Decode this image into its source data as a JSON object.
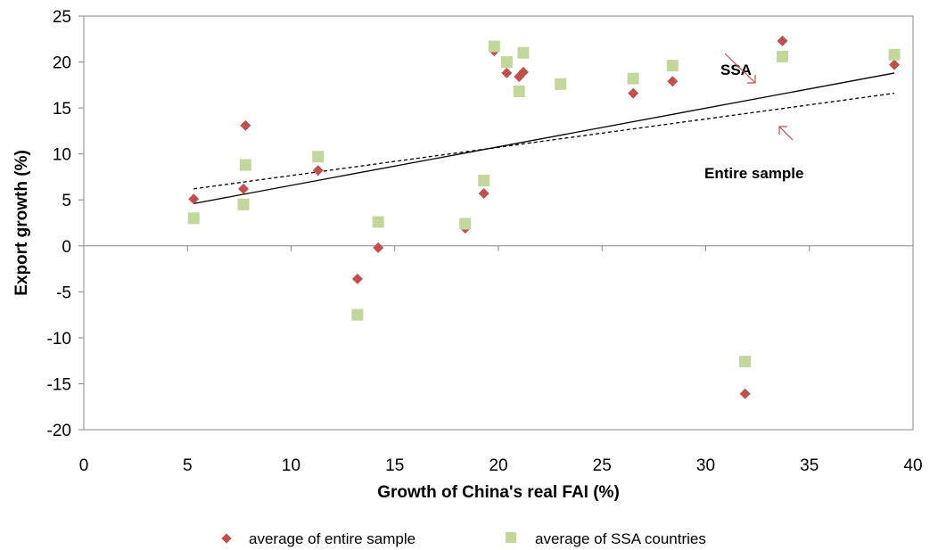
{
  "chart_data": {
    "type": "scatter",
    "xlabel": "Growth of China's real FAI (%)",
    "ylabel": "Export growth (%)",
    "xlim": [
      0,
      40
    ],
    "ylim": [
      -20,
      25
    ],
    "xticks": [
      0,
      5,
      10,
      15,
      20,
      25,
      30,
      35,
      40
    ],
    "yticks": [
      -20,
      -15,
      -10,
      -5,
      0,
      5,
      10,
      15,
      20,
      25
    ],
    "grid": false,
    "legend_position": "bottom",
    "series": [
      {
        "name": "average of entire sample",
        "marker": "diamond",
        "color": "#C0504D",
        "points": [
          [
            5.3,
            5.1
          ],
          [
            7.7,
            6.2
          ],
          [
            7.8,
            13.1
          ],
          [
            11.3,
            8.2
          ],
          [
            13.2,
            -3.6
          ],
          [
            14.2,
            -0.2
          ],
          [
            18.4,
            1.9
          ],
          [
            19.3,
            5.7
          ],
          [
            19.8,
            21.2
          ],
          [
            20.4,
            18.8
          ],
          [
            21.0,
            18.4
          ],
          [
            21.2,
            18.9
          ],
          [
            23.0,
            17.6
          ],
          [
            26.5,
            16.6
          ],
          [
            28.4,
            17.9
          ],
          [
            31.9,
            -16.1
          ],
          [
            33.7,
            22.3
          ],
          [
            39.1,
            19.7
          ]
        ]
      },
      {
        "name": "average of SSA countries",
        "marker": "square",
        "color": "#C3D69B",
        "points": [
          [
            5.3,
            3.0
          ],
          [
            7.7,
            4.5
          ],
          [
            7.8,
            8.8
          ],
          [
            11.3,
            9.7
          ],
          [
            13.2,
            -7.5
          ],
          [
            14.2,
            2.6
          ],
          [
            18.4,
            2.4
          ],
          [
            19.3,
            7.1
          ],
          [
            19.8,
            21.7
          ],
          [
            20.4,
            20.0
          ],
          [
            21.0,
            16.8
          ],
          [
            21.2,
            21.0
          ],
          [
            23.0,
            17.6
          ],
          [
            26.5,
            18.2
          ],
          [
            28.4,
            19.6
          ],
          [
            31.9,
            -12.6
          ],
          [
            33.7,
            20.6
          ],
          [
            39.1,
            20.8
          ]
        ]
      }
    ],
    "trendlines": [
      {
        "label": "SSA",
        "style": "solid",
        "color": "#000000",
        "x": [
          5.3,
          39.1
        ],
        "y": [
          4.6,
          18.8
        ]
      },
      {
        "label": "Entire sample",
        "style": "dashed",
        "color": "#000000",
        "x": [
          5.3,
          39.1
        ],
        "y": [
          6.2,
          16.6
        ]
      }
    ]
  }
}
